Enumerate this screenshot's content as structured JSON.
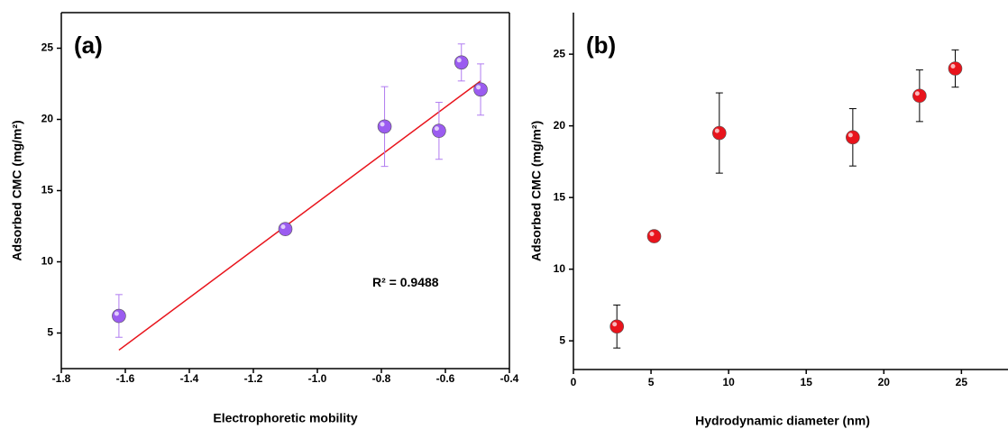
{
  "chart_data": [
    {
      "type": "scatter",
      "panel_label": "(a)",
      "x_label": "Electrophoretic mobility",
      "y_label": "Adsorbed CMC (mg/m²)",
      "annotation": "R² = 0.9488",
      "frame": "box",
      "xlim": [
        -1.8,
        -0.4
      ],
      "xticks": [
        -1.8,
        -1.6,
        -1.4,
        -1.2,
        {
          "value": -1,
          "label": "-1.0"
        },
        -0.8,
        -0.6,
        -0.4
      ],
      "ylim": [
        2.5,
        27.5
      ],
      "yticks": [
        5,
        10,
        15,
        20,
        25
      ],
      "series": [
        {
          "color": "#9b5cf0",
          "error_color": "#b07cf0",
          "x": [
            -1.62,
            -1.1,
            -0.79,
            -0.62,
            -0.55,
            -0.49
          ],
          "values": [
            6.2,
            12.3,
            19.5,
            19.2,
            24.0,
            22.1
          ],
          "errors": [
            1.5,
            0.2,
            2.8,
            2.0,
            1.3,
            1.8
          ]
        }
      ],
      "fit": {
        "color": "#e8141c",
        "x": [
          -1.62,
          -0.49
        ],
        "y": [
          3.8,
          22.7
        ]
      }
    },
    {
      "type": "scatter",
      "panel_label": "(b)",
      "x_label": "Hydrodynamic diameter (nm)",
      "y_label": "Adsorbed CMC (mg/m²)",
      "frame": "axes",
      "xlim": [
        0,
        28
      ],
      "xticks": [
        0,
        5,
        10,
        15,
        20,
        25
      ],
      "ylim": [
        3,
        27.9
      ],
      "yticks": [
        5,
        10,
        15,
        20,
        25
      ],
      "series": [
        {
          "color": "#e8141c",
          "error_color": "#000000",
          "x": [
            2.8,
            5.2,
            9.4,
            18,
            22.3,
            24.6
          ],
          "values": [
            6.0,
            12.3,
            19.5,
            19.2,
            22.1,
            24.0
          ],
          "errors": [
            1.5,
            0.2,
            2.8,
            2.0,
            1.8,
            1.3
          ]
        }
      ]
    }
  ]
}
